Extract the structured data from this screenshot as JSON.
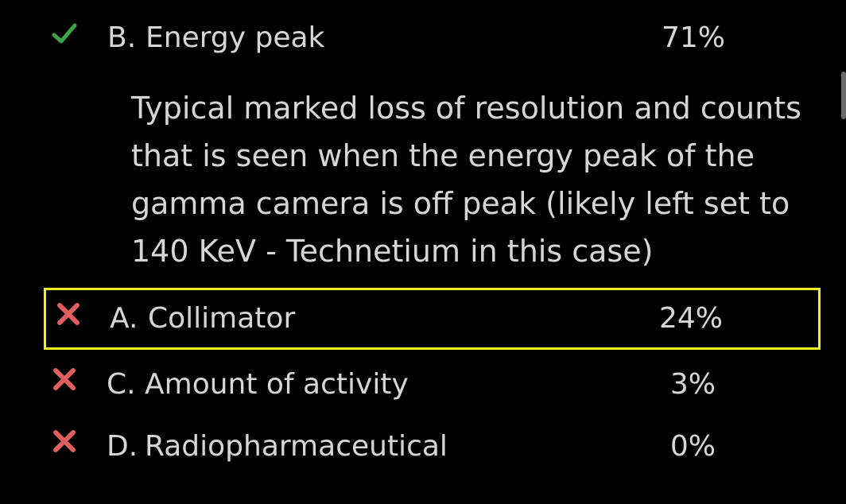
{
  "correct_option": {
    "letter": "B.",
    "text": "Energy peak",
    "percent": "71%",
    "status": "correct",
    "explanation": "Typical marked loss of resolution and counts that is seen when the energy peak of the gamma camera is off peak (likely left set to 140 KeV - Technetium in this case)"
  },
  "options": [
    {
      "letter": "A.",
      "text": "Collimator",
      "percent": "24%",
      "status": "incorrect",
      "selected": true
    },
    {
      "letter": "C.",
      "text": "Amount of activity",
      "percent": "3%",
      "status": "incorrect",
      "selected": false
    },
    {
      "letter": "D.",
      "text": "Radiopharmaceutical",
      "percent": "0%",
      "status": "incorrect",
      "selected": false
    }
  ],
  "icons": {
    "correct": "check-icon",
    "incorrect": "cross-icon"
  },
  "colors": {
    "background": "#000000",
    "text": "#d6d6d6",
    "correct": "#3fa24a",
    "incorrect": "#e06060",
    "selected_border": "#f2ee1b"
  }
}
